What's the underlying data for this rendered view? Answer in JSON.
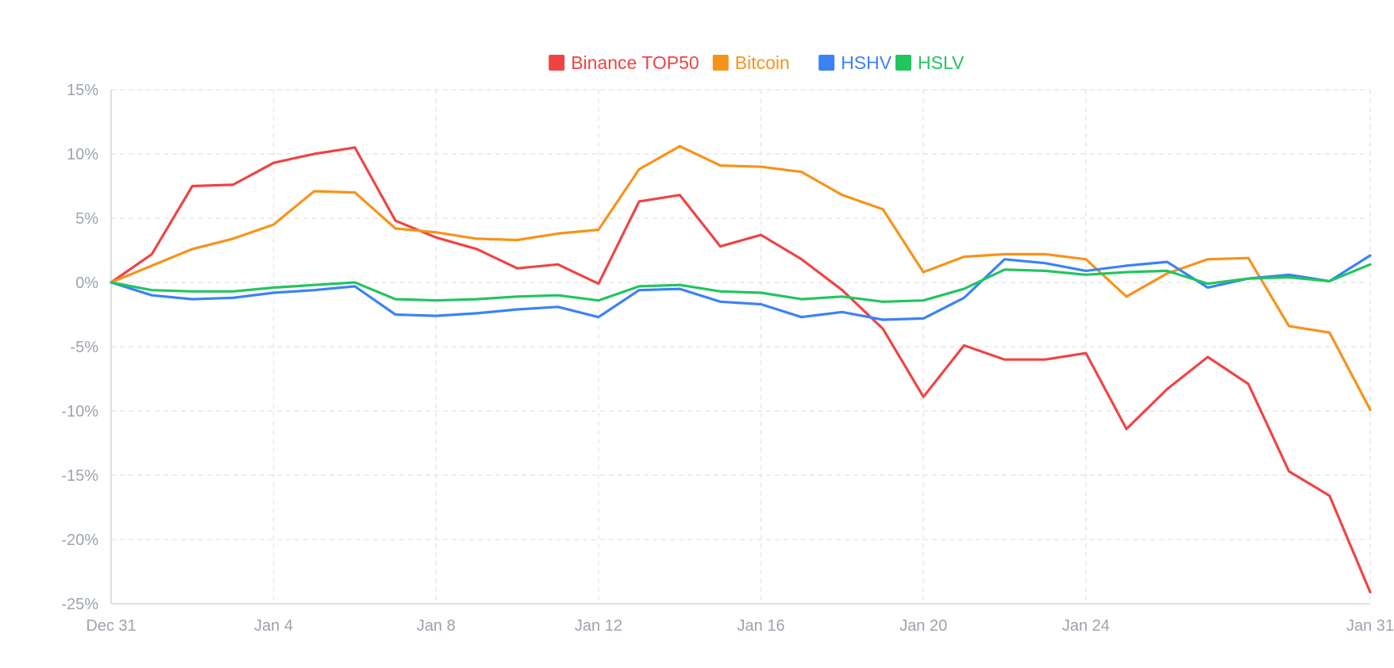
{
  "chart_data": {
    "type": "line",
    "title": "",
    "xlabel": "",
    "ylabel": "",
    "x": [
      "Dec 31",
      "Jan 1",
      "Jan 2",
      "Jan 3",
      "Jan 4",
      "Jan 5",
      "Jan 6",
      "Jan 7",
      "Jan 8",
      "Jan 9",
      "Jan 10",
      "Jan 11",
      "Jan 12",
      "Jan 13",
      "Jan 14",
      "Jan 15",
      "Jan 16",
      "Jan 17",
      "Jan 18",
      "Jan 19",
      "Jan 20",
      "Jan 21",
      "Jan 22",
      "Jan 23",
      "Jan 24",
      "Jan 25",
      "Jan 26",
      "Jan 27",
      "Jan 28",
      "Jan 29",
      "Jan 30",
      "Jan 31"
    ],
    "x_ticks": [
      "Dec 31",
      "Jan 4",
      "Jan 8",
      "Jan 12",
      "Jan 16",
      "Jan 20",
      "Jan 24",
      "Jan 31"
    ],
    "x_tick_indices": [
      0,
      4,
      8,
      12,
      16,
      20,
      24,
      31
    ],
    "y_ticks": [
      15,
      10,
      5,
      0,
      -5,
      -10,
      -15,
      -20,
      -25
    ],
    "y_tick_labels": [
      "15%",
      "10%",
      "5%",
      "0%",
      "-5%",
      "-10%",
      "-15%",
      "-20%",
      "-25%"
    ],
    "ylim": [
      -25,
      15
    ],
    "grid": true,
    "legend_position": "top-center",
    "series": [
      {
        "name": "Binance TOP50",
        "color": "#ef4444",
        "values": [
          0,
          2.2,
          7.5,
          7.6,
          9.3,
          10.0,
          10.5,
          4.8,
          3.5,
          2.6,
          1.1,
          1.4,
          -0.1,
          6.3,
          6.8,
          2.8,
          3.7,
          1.8,
          -0.6,
          -3.6,
          -8.9,
          -4.9,
          -6.0,
          -6.0,
          -5.5,
          -11.4,
          -8.3,
          -5.8,
          -7.9,
          -14.7,
          -16.6,
          -24.1
        ]
      },
      {
        "name": "Bitcoin",
        "color": "#f7931a",
        "values": [
          0,
          1.3,
          2.6,
          3.4,
          4.5,
          7.1,
          7.0,
          4.2,
          3.9,
          3.4,
          3.3,
          3.8,
          4.1,
          8.8,
          10.6,
          9.1,
          9.0,
          8.6,
          6.8,
          5.7,
          0.8,
          2.0,
          2.2,
          2.2,
          1.8,
          -1.1,
          0.7,
          1.8,
          1.9,
          -3.4,
          -3.9,
          -9.9
        ]
      },
      {
        "name": "HSHV",
        "color": "#3b82f6",
        "values": [
          0,
          -1.0,
          -1.3,
          -1.2,
          -0.8,
          -0.6,
          -0.3,
          -2.5,
          -2.6,
          -2.4,
          -2.1,
          -1.9,
          -2.7,
          -0.6,
          -0.5,
          -1.5,
          -1.7,
          -2.7,
          -2.3,
          -2.9,
          -2.8,
          -1.2,
          1.8,
          1.5,
          0.9,
          1.3,
          1.6,
          -0.4,
          0.3,
          0.6,
          0.1,
          2.1
        ]
      },
      {
        "name": "HSLV",
        "color": "#22c55e",
        "values": [
          0,
          -0.6,
          -0.7,
          -0.7,
          -0.4,
          -0.2,
          0.0,
          -1.3,
          -1.4,
          -1.3,
          -1.1,
          -1.0,
          -1.4,
          -0.3,
          -0.2,
          -0.7,
          -0.8,
          -1.3,
          -1.1,
          -1.5,
          -1.4,
          -0.5,
          1.0,
          0.9,
          0.6,
          0.8,
          0.9,
          -0.1,
          0.3,
          0.4,
          0.1,
          1.4
        ]
      }
    ]
  }
}
